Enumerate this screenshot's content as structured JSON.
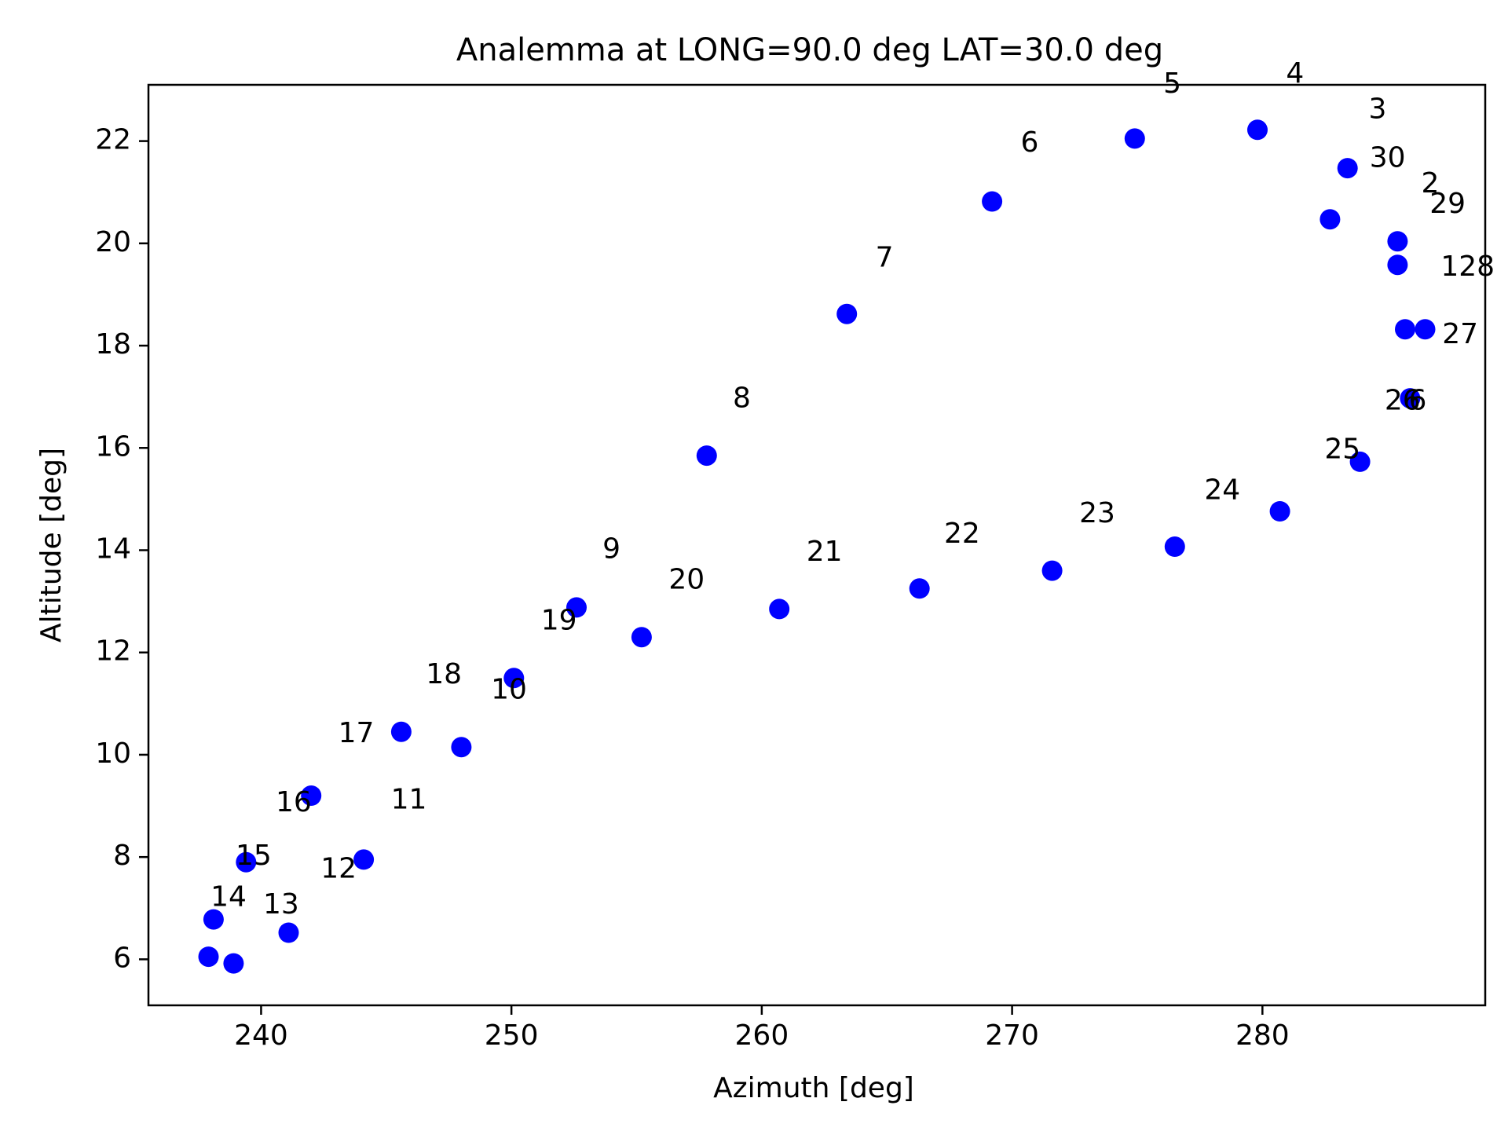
{
  "chart_data": {
    "type": "scatter",
    "title": "Analemma at LONG=90.0 deg LAT=30.0 deg",
    "xlabel": "Azimuth [deg]",
    "ylabel": "Altitude [deg]",
    "xlim": [
      235.5,
      288.9
    ],
    "ylim": [
      5.1,
      23.1
    ],
    "xticks": [
      240,
      250,
      260,
      270,
      280
    ],
    "yticks": [
      6,
      8,
      10,
      12,
      14,
      16,
      18,
      20,
      22
    ],
    "grid": false,
    "marker_color": "#0000ff",
    "points": [
      {
        "x": 237.9,
        "y": 6.05
      },
      {
        "x": 238.1,
        "y": 6.78
      },
      {
        "x": 238.9,
        "y": 5.92
      },
      {
        "x": 239.4,
        "y": 7.9
      },
      {
        "x": 241.1,
        "y": 6.52
      },
      {
        "x": 242.0,
        "y": 9.2
      },
      {
        "x": 244.1,
        "y": 7.95
      },
      {
        "x": 245.6,
        "y": 10.45
      },
      {
        "x": 248.0,
        "y": 10.15
      },
      {
        "x": 250.1,
        "y": 11.5
      },
      {
        "x": 252.6,
        "y": 12.88
      },
      {
        "x": 255.2,
        "y": 12.3
      },
      {
        "x": 257.8,
        "y": 15.85
      },
      {
        "x": 260.7,
        "y": 12.85
      },
      {
        "x": 263.4,
        "y": 18.62
      },
      {
        "x": 266.3,
        "y": 13.25
      },
      {
        "x": 269.2,
        "y": 20.82
      },
      {
        "x": 271.6,
        "y": 13.6
      },
      {
        "x": 274.9,
        "y": 22.05
      },
      {
        "x": 276.5,
        "y": 14.07
      },
      {
        "x": 279.8,
        "y": 22.22
      },
      {
        "x": 280.7,
        "y": 14.76
      },
      {
        "x": 282.7,
        "y": 20.47
      },
      {
        "x": 283.4,
        "y": 21.47
      },
      {
        "x": 283.9,
        "y": 15.73
      },
      {
        "x": 285.4,
        "y": 19.58
      },
      {
        "x": 285.4,
        "y": 20.04
      },
      {
        "x": 285.7,
        "y": 18.32
      },
      {
        "x": 285.9,
        "y": 16.97
      },
      {
        "x": 286.5,
        "y": 18.32
      }
    ],
    "labels": [
      {
        "text": "5",
        "x": 276.4,
        "y": 23.1
      },
      {
        "text": "4",
        "x": 281.3,
        "y": 23.3
      },
      {
        "text": "3",
        "x": 284.6,
        "y": 22.6
      },
      {
        "text": "6",
        "x": 270.7,
        "y": 21.95
      },
      {
        "text": "30",
        "x": 285.0,
        "y": 21.65
      },
      {
        "text": "2",
        "x": 286.7,
        "y": 21.15
      },
      {
        "text": "29",
        "x": 287.4,
        "y": 20.75
      },
      {
        "text": "7",
        "x": 264.9,
        "y": 19.7
      },
      {
        "text": "128",
        "x": 288.2,
        "y": 19.52
      },
      {
        "text": "27",
        "x": 287.9,
        "y": 18.2
      },
      {
        "text": "8",
        "x": 259.2,
        "y": 16.95
      },
      {
        "text": "26",
        "x": 285.6,
        "y": 16.9
      },
      {
        "text": "6",
        "x": 286.2,
        "y": 16.9
      },
      {
        "text": "25",
        "x": 283.2,
        "y": 15.95
      },
      {
        "text": "24",
        "x": 278.4,
        "y": 15.15
      },
      {
        "text": "23",
        "x": 273.4,
        "y": 14.7
      },
      {
        "text": "22",
        "x": 268.0,
        "y": 14.3
      },
      {
        "text": "9",
        "x": 254.0,
        "y": 14.0
      },
      {
        "text": "21",
        "x": 262.5,
        "y": 13.95
      },
      {
        "text": "20",
        "x": 257.0,
        "y": 13.4
      },
      {
        "text": "19",
        "x": 251.9,
        "y": 12.6
      },
      {
        "text": "18",
        "x": 247.3,
        "y": 11.55
      },
      {
        "text": "10",
        "x": 249.9,
        "y": 11.25
      },
      {
        "text": "17",
        "x": 243.8,
        "y": 10.4
      },
      {
        "text": "16",
        "x": 241.3,
        "y": 9.05
      },
      {
        "text": "11",
        "x": 245.9,
        "y": 9.1
      },
      {
        "text": "15",
        "x": 239.7,
        "y": 8.0
      },
      {
        "text": "12",
        "x": 243.1,
        "y": 7.75
      },
      {
        "text": "14",
        "x": 238.7,
        "y": 7.2
      },
      {
        "text": "13",
        "x": 240.8,
        "y": 7.05
      }
    ]
  }
}
